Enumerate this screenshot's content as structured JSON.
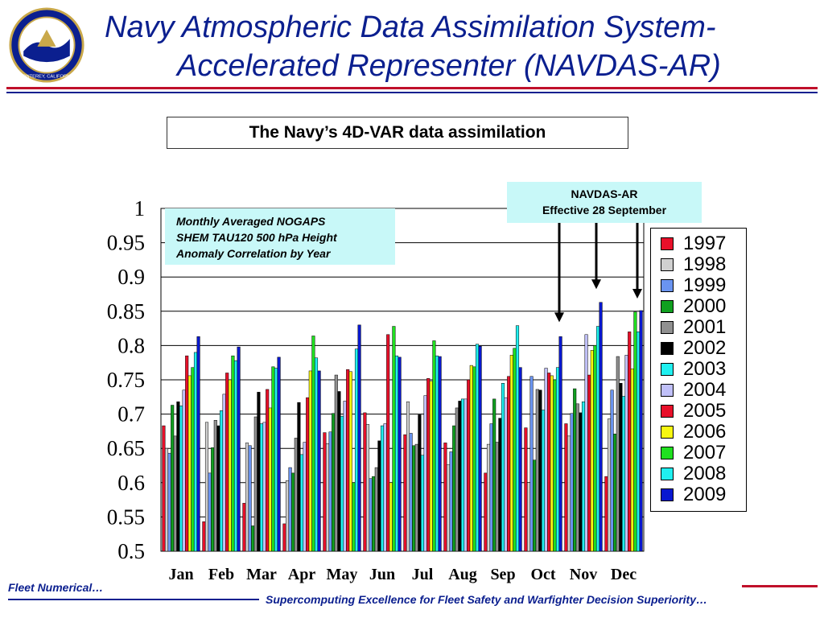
{
  "header": {
    "title_line1": "Navy Atmospheric Data Assimilation System-",
    "title_line2": "Accelerated Representer (NAVDAS-AR)",
    "accent_red": "#c0102a",
    "accent_blue": "#0b1f8f"
  },
  "logo": {
    "icon": "seal-icon",
    "text_bottom": "MONTEREY, CALIFORNIA"
  },
  "subtitle": "The Navy’s 4D-VAR data assimilation",
  "note": {
    "line1": "Monthly Averaged NOGAPS",
    "line2": "SHEM TAU120 500 hPa Height",
    "line3": "Anomaly Correlation by Year"
  },
  "annotation": {
    "line1": "NAVDAS-AR",
    "line2": "Effective 28 September"
  },
  "footer": {
    "left": "Fleet Numerical…",
    "right": "Supercomputing Excellence for Fleet Safety and Warfighter Decision Superiority…"
  },
  "chart_data": {
    "type": "bar",
    "title": "",
    "xlabel": "",
    "ylabel": "",
    "ylim": [
      0.5,
      1.0
    ],
    "yticks": [
      "0.5",
      "0.55",
      "0.6",
      "0.65",
      "0.7",
      "0.75",
      "0.8",
      "0.85",
      "0.9",
      "0.95",
      "1"
    ],
    "grid": true,
    "legend_position": "right",
    "categories": [
      "Jan",
      "Feb",
      "Mar",
      "Apr",
      "May",
      "Jun",
      "Jul",
      "Aug",
      "Sep",
      "Oct",
      "Nov",
      "Dec"
    ],
    "series": [
      {
        "name": "1997",
        "color": "#e8102a",
        "values": [
          0.683,
          0.543,
          0.57,
          0.54,
          0.673,
          0.702,
          0.67,
          0.658,
          0.614,
          0.68,
          0.686,
          0.609
        ]
      },
      {
        "name": "1998",
        "color": "#d0d0d0",
        "values": [
          0.65,
          0.688,
          0.658,
          0.603,
          0.657,
          0.685,
          0.718,
          0.626,
          0.656,
          0.6,
          0.668,
          0.693
        ]
      },
      {
        "name": "1999",
        "color": "#6a94f0",
        "values": [
          0.643,
          0.614,
          0.654,
          0.622,
          0.674,
          0.606,
          0.672,
          0.645,
          0.686,
          0.755,
          0.701,
          0.735
        ]
      },
      {
        "name": "2000",
        "color": "#10a020",
        "values": [
          0.713,
          0.651,
          0.537,
          0.614,
          0.701,
          0.609,
          0.654,
          0.683,
          0.722,
          0.633,
          0.737,
          0.671
        ]
      },
      {
        "name": "2001",
        "color": "#909090",
        "values": [
          0.668,
          0.691,
          0.696,
          0.665,
          0.757,
          0.622,
          0.656,
          0.709,
          0.659,
          0.736,
          0.715,
          0.784
        ]
      },
      {
        "name": "2002",
        "color": "#000000",
        "values": [
          0.718,
          0.683,
          0.732,
          0.717,
          0.733,
          0.661,
          0.699,
          0.719,
          0.694,
          0.735,
          0.702,
          0.745
        ]
      },
      {
        "name": "2003",
        "color": "#20f0f0",
        "values": [
          0.712,
          0.705,
          0.686,
          0.641,
          0.697,
          0.683,
          0.64,
          0.722,
          0.745,
          0.706,
          0.718,
          0.726
        ]
      },
      {
        "name": "2004",
        "color": "#c0c0f8",
        "values": [
          0.735,
          0.729,
          0.688,
          0.659,
          0.719,
          0.686,
          0.727,
          0.722,
          0.724,
          0.767,
          0.816,
          0.786
        ]
      },
      {
        "name": "2005",
        "color": "#e8102a",
        "values": [
          0.785,
          0.76,
          0.736,
          0.724,
          0.765,
          0.816,
          0.752,
          0.75,
          0.755,
          0.76,
          0.757,
          0.82
        ]
      },
      {
        "name": "2006",
        "color": "#f8f810",
        "values": [
          0.756,
          0.75,
          0.709,
          0.763,
          0.762,
          0.6,
          0.748,
          0.771,
          0.786,
          0.756,
          0.793,
          0.766
        ]
      },
      {
        "name": "2007",
        "color": "#20e020",
        "values": [
          0.768,
          0.785,
          0.769,
          0.814,
          0.6,
          0.828,
          0.807,
          0.769,
          0.796,
          0.75,
          0.8,
          0.849
        ]
      },
      {
        "name": "2008",
        "color": "#20f0f0",
        "values": [
          0.79,
          0.778,
          0.767,
          0.782,
          0.795,
          0.785,
          0.785,
          0.802,
          0.829,
          0.768,
          0.828,
          0.82
        ]
      },
      {
        "name": "2009",
        "color": "#0818d0",
        "values": [
          0.813,
          0.798,
          0.783,
          0.763,
          0.83,
          0.783,
          0.784,
          0.799,
          0.768,
          0.813,
          0.863,
          0.851
        ]
      }
    ]
  }
}
